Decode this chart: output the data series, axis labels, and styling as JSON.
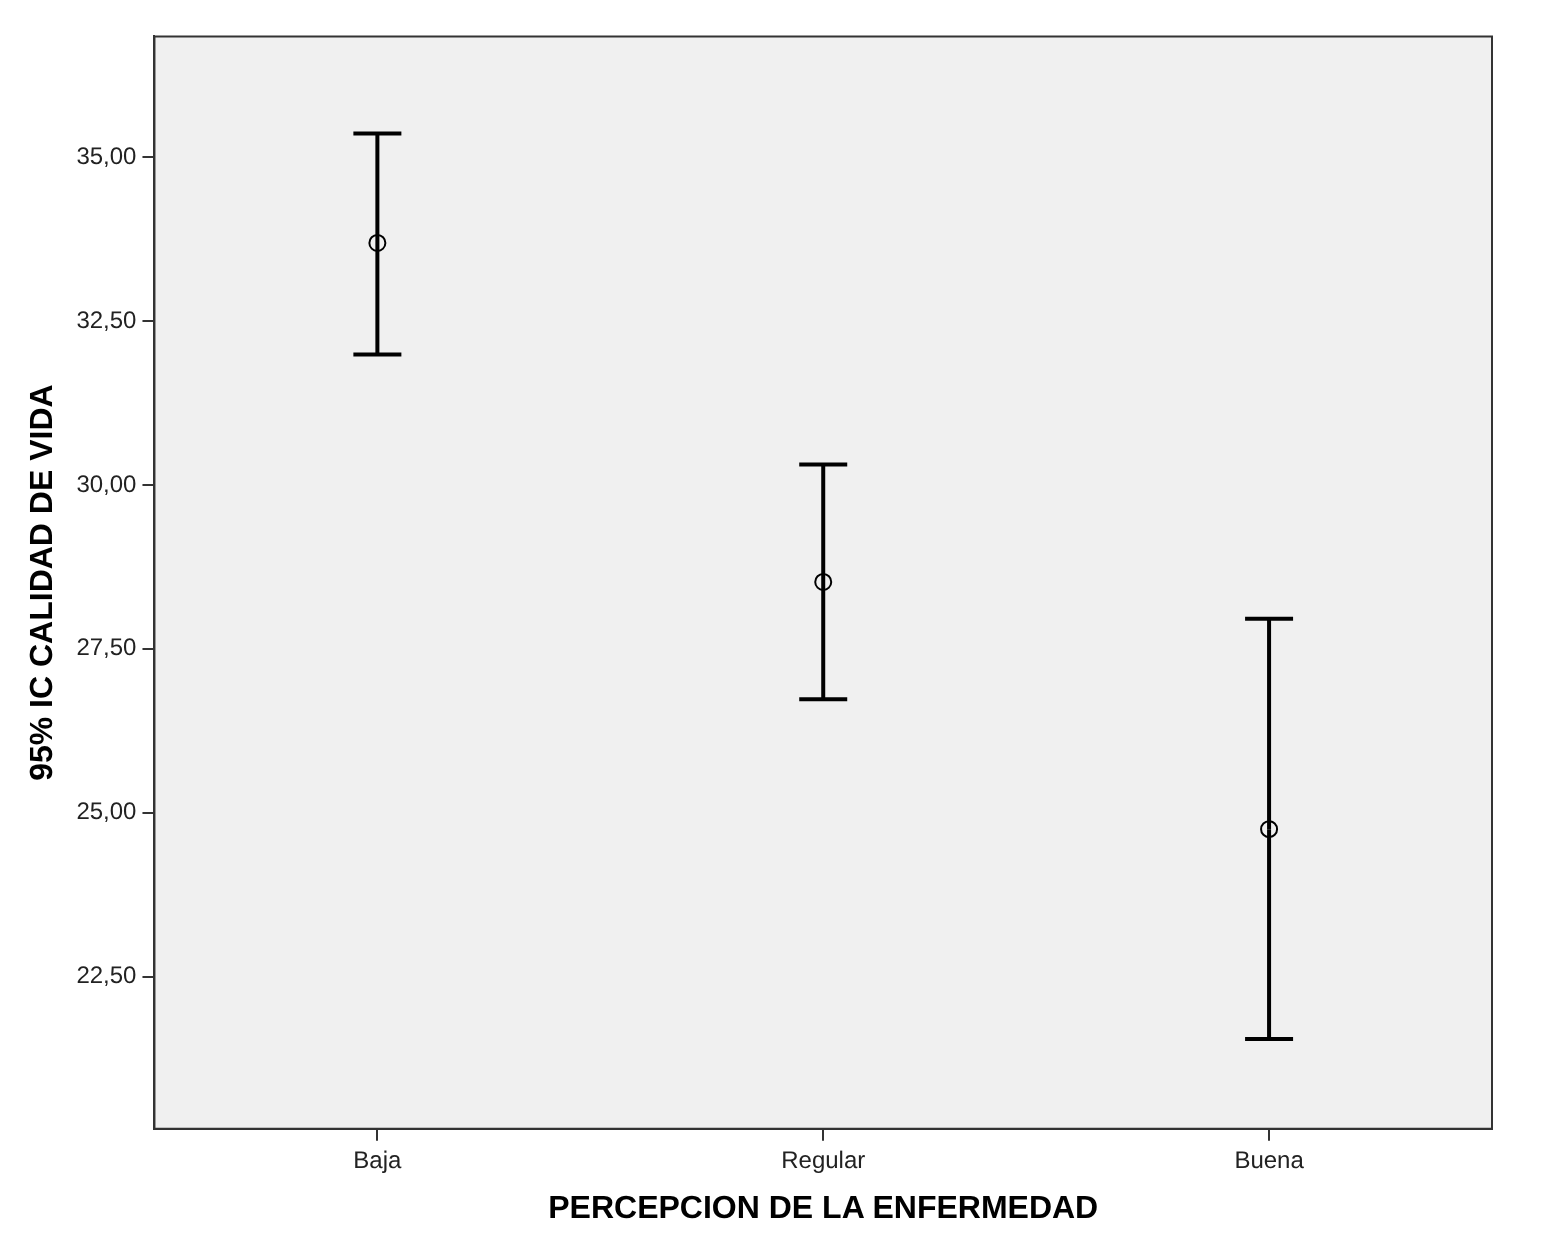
{
  "chart_data": {
    "type": "scatter",
    "xlabel": "PERCEPCION DE LA ENFERMEDAD",
    "ylabel": "95% IC CALIDAD DE VIDA",
    "categories": [
      "Baja",
      "Regular",
      "Buena"
    ],
    "values": [
      33.69,
      28.52,
      24.75
    ],
    "errors": [
      [
        31.99,
        35.36
      ],
      [
        26.73,
        30.31
      ],
      [
        21.55,
        27.96
      ]
    ],
    "color": "#000000",
    "marker": "circle",
    "legend": false,
    "ylim": [
      20.18,
      36.84
    ],
    "yticks": [
      {
        "value": 22.5,
        "label": "22,50"
      },
      {
        "value": 25,
        "label": "25,00"
      },
      {
        "value": 27.5,
        "label": "27,50"
      },
      {
        "value": 30,
        "label": "30,00"
      },
      {
        "value": 32.5,
        "label": "32,50"
      },
      {
        "value": 35,
        "label": "35,00"
      }
    ]
  }
}
